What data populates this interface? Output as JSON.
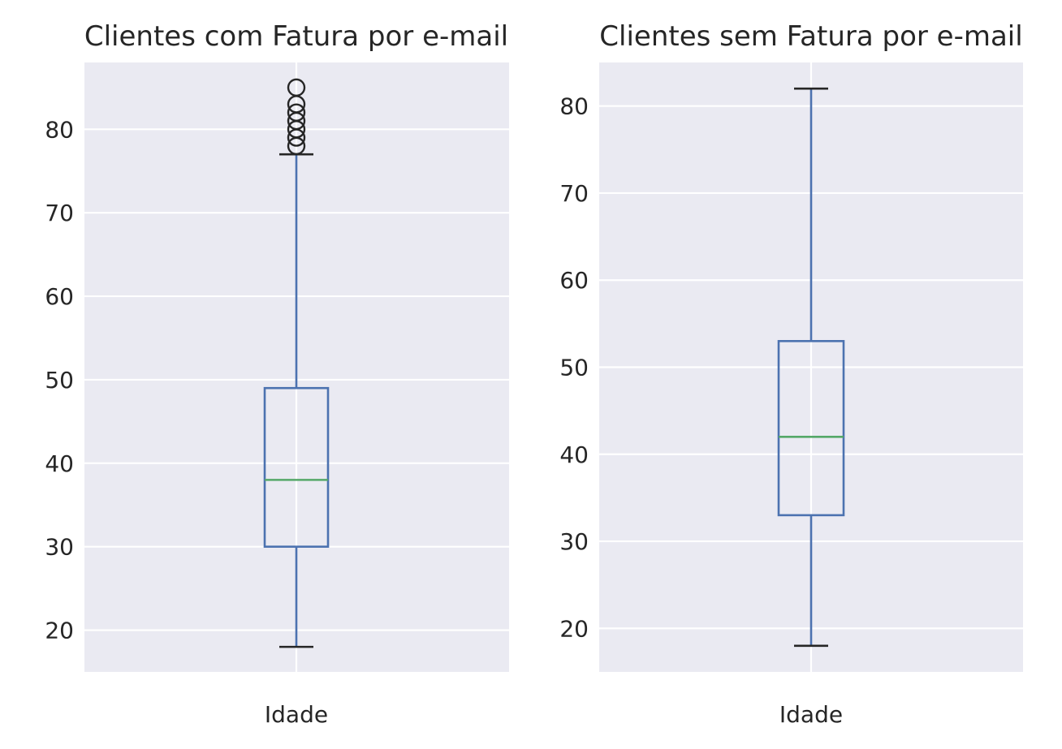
{
  "colors": {
    "axes_background": "#eaeaf2",
    "grid": "#ffffff",
    "box": "#4c72b0",
    "median": "#55a868",
    "caps_and_fliers": "#262626",
    "text": "#262626"
  },
  "chart_data": [
    {
      "type": "box",
      "title": "Clientes com Fatura por e-mail",
      "categories": [
        "Idade"
      ],
      "ylim": [
        15,
        88
      ],
      "yticks": [
        20,
        30,
        40,
        50,
        60,
        70,
        80
      ],
      "grid": true,
      "boxes": [
        {
          "label": "Idade",
          "whisker_low": 18,
          "q1": 30,
          "median": 38,
          "q3": 49,
          "whisker_high": 77,
          "outliers": [
            78,
            79,
            80,
            81,
            82,
            83,
            85
          ]
        }
      ]
    },
    {
      "type": "box",
      "title": "Clientes sem Fatura por e-mail",
      "categories": [
        "Idade"
      ],
      "ylim": [
        15,
        85
      ],
      "yticks": [
        20,
        30,
        40,
        50,
        60,
        70,
        80
      ],
      "grid": true,
      "boxes": [
        {
          "label": "Idade",
          "whisker_low": 18,
          "q1": 33,
          "median": 42,
          "q3": 53,
          "whisker_high": 82,
          "outliers": []
        }
      ]
    }
  ]
}
